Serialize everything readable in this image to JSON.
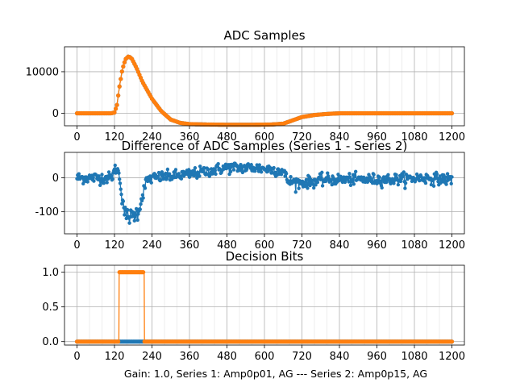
{
  "figure_caption": "Gain: 1.0, Series 1: Amp0p01, AG --- Series 2: Amp0p15, AG",
  "colors": {
    "series1": "#1f77b4",
    "series2": "#ff7f0e",
    "grid": "#b0b0b0",
    "axes": "#000000"
  },
  "chart_data": [
    {
      "id": "adc",
      "type": "line",
      "title": "ADC Samples",
      "xlabel": "",
      "ylabel": "",
      "xlim": [
        -40,
        1240
      ],
      "ylim": [
        -3000,
        16000
      ],
      "xticks": [
        0,
        120,
        240,
        360,
        480,
        600,
        720,
        840,
        960,
        1080,
        1200
      ],
      "yticks": [
        0,
        10000
      ],
      "grid": true,
      "x_sample_range": [
        0,
        1200
      ],
      "series": [
        {
          "name": "Series 1 (Amp0p01, AG)",
          "color": "#1f77b4",
          "marker": "circle",
          "points": [
            [
              0,
              0
            ],
            [
              110,
              0
            ],
            [
              120,
              200
            ],
            [
              128,
              2000
            ],
            [
              135,
              6000
            ],
            [
              145,
              10500
            ],
            [
              155,
              13000
            ],
            [
              165,
              13700
            ],
            [
              175,
              13200
            ],
            [
              190,
              11000
            ],
            [
              210,
              7500
            ],
            [
              240,
              3500
            ],
            [
              270,
              500
            ],
            [
              300,
              -1500
            ],
            [
              330,
              -2300
            ],
            [
              360,
              -2600
            ],
            [
              420,
              -2700
            ],
            [
              480,
              -2750
            ],
            [
              560,
              -2750
            ],
            [
              620,
              -2700
            ],
            [
              660,
              -2500
            ],
            [
              690,
              -1700
            ],
            [
              720,
              -900
            ],
            [
              760,
              -400
            ],
            [
              800,
              -150
            ],
            [
              840,
              0
            ],
            [
              1200,
              0
            ]
          ]
        },
        {
          "name": "Series 2 (Amp0p15, AG)",
          "color": "#ff7f0e",
          "marker": "circle",
          "points": [
            [
              0,
              0
            ],
            [
              110,
              0
            ],
            [
              120,
              200
            ],
            [
              128,
              2000
            ],
            [
              135,
              6000
            ],
            [
              145,
              10500
            ],
            [
              155,
              13000
            ],
            [
              165,
              13700
            ],
            [
              175,
              13200
            ],
            [
              190,
              11000
            ],
            [
              210,
              7500
            ],
            [
              240,
              3500
            ],
            [
              270,
              500
            ],
            [
              300,
              -1500
            ],
            [
              330,
              -2300
            ],
            [
              360,
              -2600
            ],
            [
              420,
              -2700
            ],
            [
              480,
              -2750
            ],
            [
              560,
              -2750
            ],
            [
              620,
              -2700
            ],
            [
              660,
              -2500
            ],
            [
              690,
              -1700
            ],
            [
              720,
              -900
            ],
            [
              760,
              -400
            ],
            [
              800,
              -150
            ],
            [
              840,
              0
            ],
            [
              1200,
              0
            ]
          ]
        }
      ]
    },
    {
      "id": "diff",
      "type": "scatter",
      "title": "Difference of ADC Samples (Series 1 - Series 2)",
      "xlabel": "",
      "ylabel": "",
      "xlim": [
        -40,
        1240
      ],
      "ylim": [
        -165,
        75
      ],
      "xticks": [
        0,
        120,
        240,
        360,
        480,
        600,
        720,
        840,
        960,
        1080,
        1200
      ],
      "yticks": [
        -100,
        0
      ],
      "grid": true,
      "series": [
        {
          "name": "Series 1 - Series 2",
          "color": "#1f77b4",
          "marker": "circle",
          "connected": true,
          "trend": [
            [
              0,
              0
            ],
            [
              110,
              0
            ],
            [
              125,
              30
            ],
            [
              135,
              10
            ],
            [
              145,
              -60
            ],
            [
              155,
              -110
            ],
            [
              175,
              -115
            ],
            [
              195,
              -100
            ],
            [
              205,
              -70
            ],
            [
              215,
              -30
            ],
            [
              225,
              -5
            ],
            [
              245,
              0
            ],
            [
              300,
              5
            ],
            [
              360,
              10
            ],
            [
              420,
              20
            ],
            [
              480,
              30
            ],
            [
              560,
              30
            ],
            [
              620,
              25
            ],
            [
              660,
              20
            ],
            [
              675,
              -10
            ],
            [
              720,
              -15
            ],
            [
              800,
              -5
            ],
            [
              900,
              -5
            ],
            [
              1000,
              -5
            ],
            [
              1100,
              0
            ],
            [
              1200,
              -5
            ]
          ],
          "noise_amplitude": 14
        }
      ]
    },
    {
      "id": "bits",
      "type": "line",
      "title": "Decision Bits",
      "xlabel": "Gain: 1.0, Series 1: Amp0p01, AG --- Series 2: Amp0p15, AG",
      "ylabel": "",
      "xlim": [
        -40,
        1240
      ],
      "ylim": [
        -0.05,
        1.1
      ],
      "xticks": [
        0,
        120,
        240,
        360,
        480,
        600,
        720,
        840,
        960,
        1080,
        1200
      ],
      "yticks": [
        0.0,
        0.5,
        1.0
      ],
      "ytick_labels": [
        "0.0",
        "0.5",
        "1.0"
      ],
      "grid": true,
      "series": [
        {
          "name": "Series 1 (Amp0p01, AG)",
          "color": "#1f77b4",
          "marker": "circle",
          "points": [
            [
              0,
              0
            ],
            [
              1200,
              0
            ]
          ]
        },
        {
          "name": "Series 2 (Amp0p15, AG)",
          "color": "#ff7f0e",
          "marker": "circle",
          "points": [
            [
              0,
              0
            ],
            [
              134,
              0
            ],
            [
              135,
              1
            ],
            [
              215,
              1
            ],
            [
              216,
              0
            ],
            [
              1200,
              0
            ]
          ]
        }
      ]
    }
  ]
}
